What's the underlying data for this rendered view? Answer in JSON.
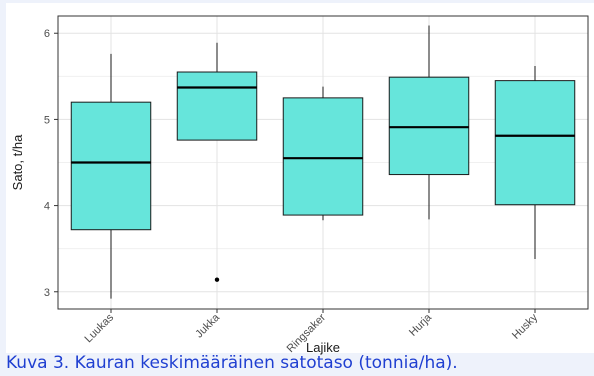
{
  "caption": "Kuva 3. Kauran keskimääräinen satotaso (tonnia/ha).",
  "chart_data": {
    "type": "boxplot",
    "title": "",
    "xlabel": "Lajike",
    "ylabel": "Sato, t/ha",
    "ylim": [
      2.8,
      6.2
    ],
    "yticks": [
      3,
      4,
      5,
      6
    ],
    "grid": true,
    "fill_color": "#66e5db",
    "categories": [
      "Luukas",
      "Jukka",
      "Ringsaker",
      "Hurja",
      "Husky"
    ],
    "boxes": [
      {
        "label": "Luukas",
        "min": 2.92,
        "q1": 3.72,
        "median": 4.5,
        "q3": 5.2,
        "max": 5.76,
        "outliers": []
      },
      {
        "label": "Jukka",
        "min": 4.76,
        "q1": 4.76,
        "median": 5.37,
        "q3": 5.55,
        "max": 5.89,
        "outliers": [
          3.14
        ]
      },
      {
        "label": "Ringsaker",
        "min": 3.83,
        "q1": 3.89,
        "median": 4.55,
        "q3": 5.25,
        "max": 5.38,
        "outliers": []
      },
      {
        "label": "Hurja",
        "min": 3.84,
        "q1": 4.36,
        "median": 4.91,
        "q3": 5.49,
        "max": 6.09,
        "outliers": []
      },
      {
        "label": "Husky",
        "min": 3.38,
        "q1": 4.01,
        "median": 4.81,
        "q3": 5.45,
        "max": 5.62,
        "outliers": []
      }
    ]
  }
}
